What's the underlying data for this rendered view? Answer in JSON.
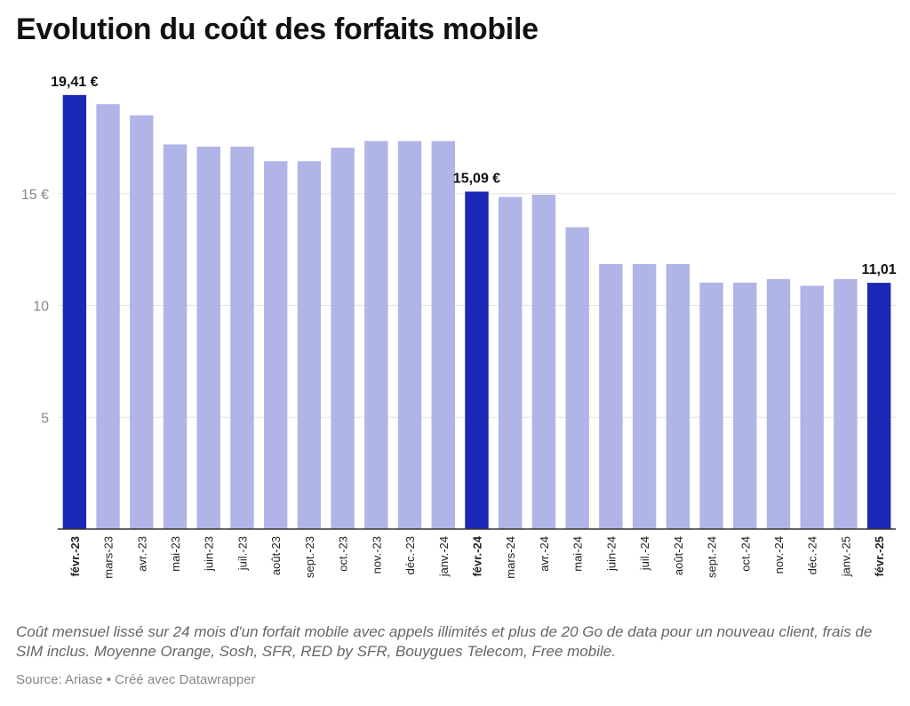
{
  "title": "Evolution du coût des forfaits mobile",
  "note": "Coût mensuel lissé sur 24 mois d'un forfait mobile avec appels illimités et plus de 20 Go de data pour un nouveau client, frais de SIM inclus. Moyenne Orange, Sosh, SFR, RED by SFR, Bouygues Telecom, Free mobile.",
  "source": "Source: Ariase • Créé avec Datawrapper",
  "colors": {
    "highlight": "#1b27b5",
    "bar": "#b0b4e6",
    "grid": "#e3e3e3",
    "axis": "#333333"
  },
  "chart_data": {
    "type": "bar",
    "title": "Evolution du coût des forfaits mobile",
    "xlabel": "",
    "ylabel": "",
    "ylim": [
      0,
      20
    ],
    "yticks": [
      {
        "value": 5,
        "label": "5"
      },
      {
        "value": 10,
        "label": "10"
      },
      {
        "value": 15,
        "label": "15 €"
      }
    ],
    "grid": true,
    "categories": [
      "févr.-23",
      "mars-23",
      "avr.-23",
      "mai-23",
      "juin-23",
      "juil.-23",
      "août-23",
      "sept.-23",
      "oct.-23",
      "nov.-23",
      "déc.-23",
      "janv.-24",
      "févr.-24",
      "mars-24",
      "avr.-24",
      "mai-24",
      "juin-24",
      "juil.-24",
      "août-24",
      "sept.-24",
      "oct.-24",
      "nov.-24",
      "déc.-24",
      "janv.-25",
      "févr.-25"
    ],
    "values": [
      19.41,
      19.0,
      18.5,
      17.2,
      17.1,
      17.1,
      16.45,
      16.45,
      17.05,
      17.35,
      17.35,
      17.35,
      15.09,
      14.85,
      14.95,
      13.5,
      11.85,
      11.85,
      11.85,
      11.02,
      11.02,
      11.18,
      10.88,
      11.18,
      11.01
    ],
    "highlighted": [
      0,
      12,
      24
    ],
    "annotations": [
      {
        "index": 0,
        "label": "19,41 €"
      },
      {
        "index": 12,
        "label": "15,09 €"
      },
      {
        "index": 24,
        "label": "11,01"
      }
    ]
  }
}
